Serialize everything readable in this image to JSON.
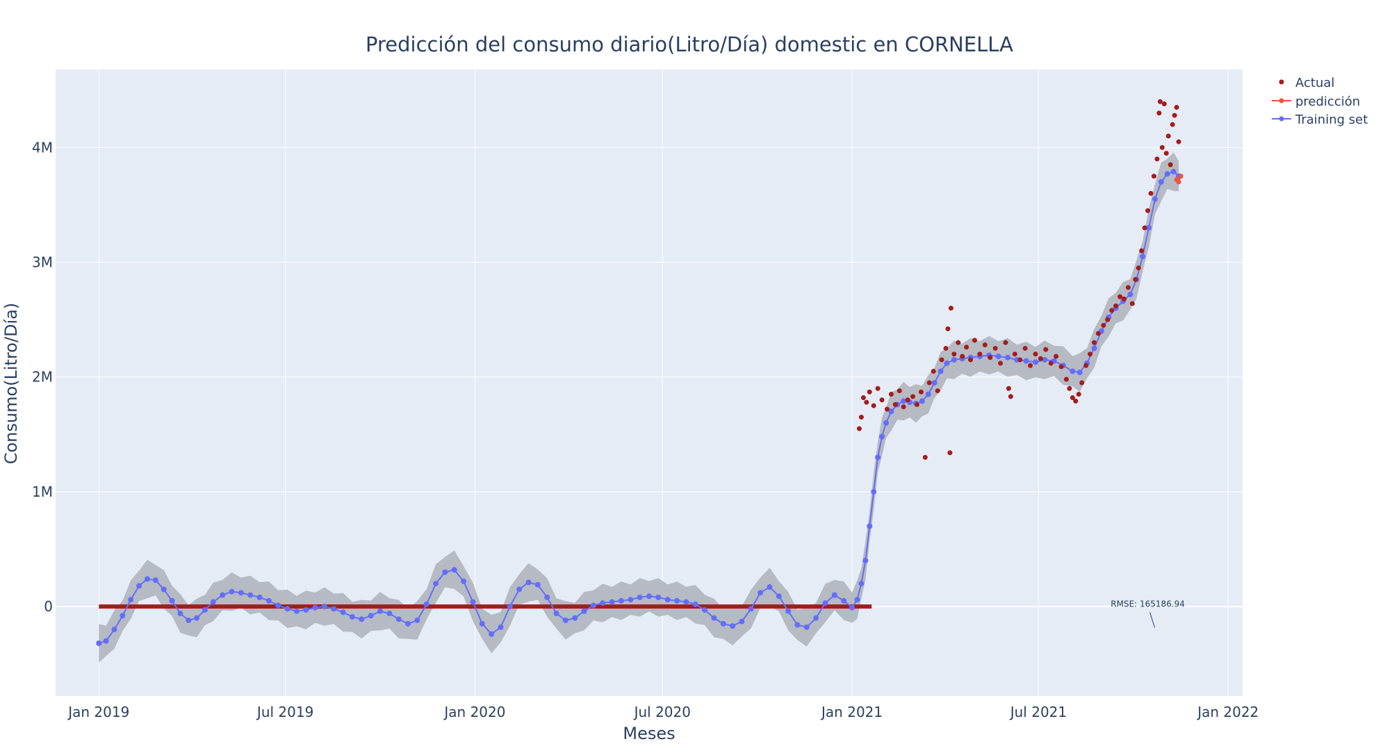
{
  "chart_data": {
    "type": "scatter",
    "title": "Predicción del consumo diario(Litro/Día) domestic en CORNELLA",
    "xlabel": "Meses",
    "ylabel": "Consumo(Litro/Día)",
    "x_range": [
      "2018-11-20",
      "2022-01-15"
    ],
    "y_range": [
      -780000,
      4680000
    ],
    "x_ticks": [
      {
        "date": "2019-01-01",
        "label": "Jan 2019"
      },
      {
        "date": "2019-07-01",
        "label": "Jul 2019"
      },
      {
        "date": "2020-01-01",
        "label": "Jan 2020"
      },
      {
        "date": "2020-07-01",
        "label": "Jul 2020"
      },
      {
        "date": "2021-01-01",
        "label": "Jan 2021"
      },
      {
        "date": "2021-07-01",
        "label": "Jul 2021"
      },
      {
        "date": "2022-01-01",
        "label": "Jan 2022"
      }
    ],
    "y_ticks": [
      {
        "value": 0,
        "label": "0"
      },
      {
        "value": 1000000,
        "label": "1M"
      },
      {
        "value": 2000000,
        "label": "2M"
      },
      {
        "value": 3000000,
        "label": "3M"
      },
      {
        "value": 4000000,
        "label": "4M"
      }
    ],
    "grid": true,
    "legend_position": "top-right",
    "series": [
      {
        "name": "Actual",
        "mode": "markers",
        "color": "#a51c1c",
        "points": [
          [
            "2019-01-01",
            0
          ],
          [
            "2019-02-01",
            0
          ],
          [
            "2019-03-01",
            0
          ],
          [
            "2019-04-01",
            0
          ],
          [
            "2019-05-01",
            0
          ],
          [
            "2019-06-01",
            0
          ],
          [
            "2019-07-01",
            0
          ],
          [
            "2019-08-01",
            0
          ],
          [
            "2019-09-01",
            0
          ],
          [
            "2019-10-01",
            0
          ],
          [
            "2019-11-01",
            0
          ],
          [
            "2019-12-01",
            0
          ],
          [
            "2020-01-01",
            0
          ],
          [
            "2020-02-01",
            0
          ],
          [
            "2020-03-01",
            0
          ],
          [
            "2020-04-01",
            0
          ],
          [
            "2020-05-01",
            0
          ],
          [
            "2020-06-01",
            0
          ],
          [
            "2020-07-01",
            0
          ],
          [
            "2020-08-01",
            0
          ],
          [
            "2020-09-01",
            0
          ],
          [
            "2020-10-01",
            0
          ],
          [
            "2020-11-01",
            0
          ],
          [
            "2020-12-01",
            0
          ],
          [
            "2021-01-01",
            0
          ],
          [
            "2021-01-20",
            0
          ],
          [
            "2021-01-08",
            1550000
          ],
          [
            "2021-01-10",
            1650000
          ],
          [
            "2021-01-12",
            1820000
          ],
          [
            "2021-01-15",
            1780000
          ],
          [
            "2021-01-18",
            1870000
          ],
          [
            "2021-01-22",
            1750000
          ],
          [
            "2021-01-26",
            1900000
          ],
          [
            "2021-01-30",
            1800000
          ],
          [
            "2021-02-04",
            1720000
          ],
          [
            "2021-02-08",
            1850000
          ],
          [
            "2021-02-12",
            1760000
          ],
          [
            "2021-02-16",
            1880000
          ],
          [
            "2021-02-20",
            1740000
          ],
          [
            "2021-02-24",
            1800000
          ],
          [
            "2021-03-01",
            1830000
          ],
          [
            "2021-03-05",
            1760000
          ],
          [
            "2021-03-09",
            1870000
          ],
          [
            "2021-03-13",
            1300000
          ],
          [
            "2021-03-17",
            1950000
          ],
          [
            "2021-03-21",
            2050000
          ],
          [
            "2021-03-25",
            1880000
          ],
          [
            "2021-03-29",
            2150000
          ],
          [
            "2021-04-02",
            2250000
          ],
          [
            "2021-04-04",
            2420000
          ],
          [
            "2021-04-06",
            1340000
          ],
          [
            "2021-04-07",
            2600000
          ],
          [
            "2021-04-10",
            2200000
          ],
          [
            "2021-04-14",
            2300000
          ],
          [
            "2021-04-18",
            2180000
          ],
          [
            "2021-04-22",
            2260000
          ],
          [
            "2021-04-26",
            2150000
          ],
          [
            "2021-04-30",
            2320000
          ],
          [
            "2021-05-05",
            2200000
          ],
          [
            "2021-05-10",
            2280000
          ],
          [
            "2021-05-15",
            2170000
          ],
          [
            "2021-05-20",
            2250000
          ],
          [
            "2021-05-25",
            2120000
          ],
          [
            "2021-05-30",
            2300000
          ],
          [
            "2021-06-02",
            1900000
          ],
          [
            "2021-06-04",
            1830000
          ],
          [
            "2021-06-08",
            2200000
          ],
          [
            "2021-06-13",
            2150000
          ],
          [
            "2021-06-18",
            2250000
          ],
          [
            "2021-06-23",
            2100000
          ],
          [
            "2021-06-28",
            2200000
          ],
          [
            "2021-07-03",
            2160000
          ],
          [
            "2021-07-08",
            2240000
          ],
          [
            "2021-07-13",
            2120000
          ],
          [
            "2021-07-18",
            2180000
          ],
          [
            "2021-07-23",
            2090000
          ],
          [
            "2021-07-28",
            1980000
          ],
          [
            "2021-07-31",
            1900000
          ],
          [
            "2021-08-03",
            1820000
          ],
          [
            "2021-08-06",
            1790000
          ],
          [
            "2021-08-09",
            1850000
          ],
          [
            "2021-08-12",
            1950000
          ],
          [
            "2021-08-16",
            2100000
          ],
          [
            "2021-08-20",
            2200000
          ],
          [
            "2021-08-24",
            2300000
          ],
          [
            "2021-08-28",
            2380000
          ],
          [
            "2021-09-02",
            2450000
          ],
          [
            "2021-09-06",
            2500000
          ],
          [
            "2021-09-10",
            2580000
          ],
          [
            "2021-09-14",
            2620000
          ],
          [
            "2021-09-18",
            2700000
          ],
          [
            "2021-09-22",
            2680000
          ],
          [
            "2021-09-26",
            2780000
          ],
          [
            "2021-09-30",
            2640000
          ],
          [
            "2021-10-03",
            2850000
          ],
          [
            "2021-10-06",
            2950000
          ],
          [
            "2021-10-09",
            3100000
          ],
          [
            "2021-10-12",
            3300000
          ],
          [
            "2021-10-15",
            3450000
          ],
          [
            "2021-10-18",
            3600000
          ],
          [
            "2021-10-21",
            3750000
          ],
          [
            "2021-10-24",
            3900000
          ],
          [
            "2021-10-26",
            4300000
          ],
          [
            "2021-10-27",
            4400000
          ],
          [
            "2021-10-29",
            4000000
          ],
          [
            "2021-10-31",
            4380000
          ],
          [
            "2021-11-02",
            3950000
          ],
          [
            "2021-11-04",
            4100000
          ],
          [
            "2021-11-06",
            3850000
          ],
          [
            "2021-11-08",
            4200000
          ],
          [
            "2021-11-10",
            4280000
          ],
          [
            "2021-11-12",
            4350000
          ],
          [
            "2021-11-14",
            4050000
          ],
          [
            "2021-11-16",
            3750000
          ]
        ]
      },
      {
        "name": "predicción",
        "mode": "lines+markers",
        "color": "#ef553b",
        "points": [
          [
            "2021-11-12",
            3720000
          ],
          [
            "2021-11-14",
            3700000
          ],
          [
            "2021-11-16",
            3750000
          ]
        ]
      },
      {
        "name": "Training set",
        "mode": "lines+markers",
        "color": "#636efa",
        "points": [
          [
            "2019-01-01",
            -320000
          ],
          [
            "2019-01-08",
            -300000
          ],
          [
            "2019-01-16",
            -200000
          ],
          [
            "2019-01-24",
            -80000
          ],
          [
            "2019-02-01",
            60000
          ],
          [
            "2019-02-09",
            180000
          ],
          [
            "2019-02-17",
            240000
          ],
          [
            "2019-02-25",
            230000
          ],
          [
            "2019-03-05",
            150000
          ],
          [
            "2019-03-13",
            50000
          ],
          [
            "2019-03-21",
            -60000
          ],
          [
            "2019-03-29",
            -120000
          ],
          [
            "2019-04-06",
            -100000
          ],
          [
            "2019-04-14",
            -30000
          ],
          [
            "2019-04-22",
            40000
          ],
          [
            "2019-05-01",
            100000
          ],
          [
            "2019-05-10",
            130000
          ],
          [
            "2019-05-19",
            120000
          ],
          [
            "2019-05-28",
            100000
          ],
          [
            "2019-06-06",
            80000
          ],
          [
            "2019-06-15",
            50000
          ],
          [
            "2019-06-24",
            10000
          ],
          [
            "2019-07-03",
            -20000
          ],
          [
            "2019-07-12",
            -40000
          ],
          [
            "2019-07-21",
            -30000
          ],
          [
            "2019-07-30",
            -10000
          ],
          [
            "2019-08-08",
            0
          ],
          [
            "2019-08-17",
            -20000
          ],
          [
            "2019-08-26",
            -50000
          ],
          [
            "2019-09-04",
            -90000
          ],
          [
            "2019-09-13",
            -110000
          ],
          [
            "2019-09-22",
            -80000
          ],
          [
            "2019-10-01",
            -40000
          ],
          [
            "2019-10-10",
            -60000
          ],
          [
            "2019-10-19",
            -110000
          ],
          [
            "2019-10-28",
            -150000
          ],
          [
            "2019-11-06",
            -120000
          ],
          [
            "2019-11-15",
            20000
          ],
          [
            "2019-11-24",
            200000
          ],
          [
            "2019-12-03",
            300000
          ],
          [
            "2019-12-12",
            320000
          ],
          [
            "2019-12-21",
            220000
          ],
          [
            "2019-12-30",
            40000
          ],
          [
            "2020-01-08",
            -150000
          ],
          [
            "2020-01-17",
            -240000
          ],
          [
            "2020-01-26",
            -180000
          ],
          [
            "2020-02-04",
            0
          ],
          [
            "2020-02-13",
            150000
          ],
          [
            "2020-02-22",
            210000
          ],
          [
            "2020-03-02",
            190000
          ],
          [
            "2020-03-11",
            80000
          ],
          [
            "2020-03-20",
            -60000
          ],
          [
            "2020-03-29",
            -120000
          ],
          [
            "2020-04-07",
            -100000
          ],
          [
            "2020-04-16",
            -40000
          ],
          [
            "2020-04-25",
            10000
          ],
          [
            "2020-05-04",
            30000
          ],
          [
            "2020-05-13",
            40000
          ],
          [
            "2020-05-22",
            50000
          ],
          [
            "2020-05-31",
            60000
          ],
          [
            "2020-06-09",
            80000
          ],
          [
            "2020-06-18",
            90000
          ],
          [
            "2020-06-27",
            80000
          ],
          [
            "2020-07-06",
            60000
          ],
          [
            "2020-07-15",
            50000
          ],
          [
            "2020-07-24",
            40000
          ],
          [
            "2020-08-02",
            20000
          ],
          [
            "2020-08-11",
            -30000
          ],
          [
            "2020-08-20",
            -100000
          ],
          [
            "2020-08-29",
            -150000
          ],
          [
            "2020-09-07",
            -170000
          ],
          [
            "2020-09-16",
            -130000
          ],
          [
            "2020-09-25",
            -20000
          ],
          [
            "2020-10-04",
            120000
          ],
          [
            "2020-10-13",
            170000
          ],
          [
            "2020-10-22",
            90000
          ],
          [
            "2020-10-31",
            -40000
          ],
          [
            "2020-11-09",
            -160000
          ],
          [
            "2020-11-18",
            -180000
          ],
          [
            "2020-11-27",
            -100000
          ],
          [
            "2020-12-06",
            30000
          ],
          [
            "2020-12-15",
            100000
          ],
          [
            "2020-12-24",
            50000
          ],
          [
            "2021-01-01",
            -10000
          ],
          [
            "2021-01-06",
            60000
          ],
          [
            "2021-01-10",
            200000
          ],
          [
            "2021-01-14",
            400000
          ],
          [
            "2021-01-18",
            700000
          ],
          [
            "2021-01-22",
            1000000
          ],
          [
            "2021-01-26",
            1300000
          ],
          [
            "2021-01-30",
            1480000
          ],
          [
            "2021-02-03",
            1600000
          ],
          [
            "2021-02-08",
            1700000
          ],
          [
            "2021-02-14",
            1760000
          ],
          [
            "2021-02-20",
            1790000
          ],
          [
            "2021-02-26",
            1780000
          ],
          [
            "2021-03-04",
            1770000
          ],
          [
            "2021-03-10",
            1790000
          ],
          [
            "2021-03-16",
            1850000
          ],
          [
            "2021-03-22",
            1950000
          ],
          [
            "2021-03-28",
            2050000
          ],
          [
            "2021-04-03",
            2120000
          ],
          [
            "2021-04-10",
            2150000
          ],
          [
            "2021-04-18",
            2160000
          ],
          [
            "2021-04-26",
            2170000
          ],
          [
            "2021-05-05",
            2180000
          ],
          [
            "2021-05-14",
            2190000
          ],
          [
            "2021-05-23",
            2180000
          ],
          [
            "2021-06-01",
            2170000
          ],
          [
            "2021-06-10",
            2150000
          ],
          [
            "2021-06-19",
            2140000
          ],
          [
            "2021-06-28",
            2130000
          ],
          [
            "2021-07-07",
            2150000
          ],
          [
            "2021-07-16",
            2140000
          ],
          [
            "2021-07-25",
            2100000
          ],
          [
            "2021-08-03",
            2050000
          ],
          [
            "2021-08-10",
            2040000
          ],
          [
            "2021-08-17",
            2120000
          ],
          [
            "2021-08-24",
            2250000
          ],
          [
            "2021-08-31",
            2400000
          ],
          [
            "2021-09-07",
            2520000
          ],
          [
            "2021-09-14",
            2600000
          ],
          [
            "2021-09-21",
            2660000
          ],
          [
            "2021-09-28",
            2720000
          ],
          [
            "2021-10-04",
            2850000
          ],
          [
            "2021-10-10",
            3050000
          ],
          [
            "2021-10-16",
            3300000
          ],
          [
            "2021-10-22",
            3550000
          ],
          [
            "2021-10-28",
            3700000
          ],
          [
            "2021-11-03",
            3770000
          ],
          [
            "2021-11-09",
            3790000
          ],
          [
            "2021-11-14",
            3750000
          ]
        ]
      }
    ],
    "annotation": {
      "text": "RMSE: 165186.94",
      "date": "2021-10-15",
      "value": -220000
    }
  }
}
